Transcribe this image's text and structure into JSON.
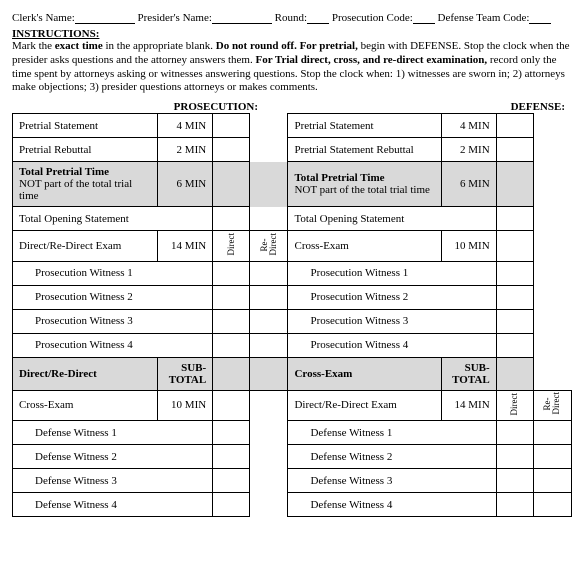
{
  "header": {
    "clerk": "Clerk's Name:",
    "presider": "Presider's Name:",
    "round": "Round:",
    "pcode": "Prosecution Code:",
    "dcode": "Defense Team Code:"
  },
  "instructions": {
    "title": "INSTRUCTIONS:",
    "t1": "Mark the ",
    "t1b": "exact time",
    "t2": " in the appropriate blank. ",
    "t2b": "Do not round off.  For pretrial,",
    "t3": " begin with DEFENSE. Stop the clock when the presider asks questions and the attorney answers them. ",
    "t3b": "For Trial direct, cross, and re-direct examination,",
    "t4": " record only the time spent by attorneys asking or witnesses answering questions.  Stop the clock when: 1) witnesses are sworn in; 2) attorneys make objections; 3) presider questions attorneys or makes comments."
  },
  "cols": {
    "pros": "PROSECUTION:",
    "def": "DEFENSE:"
  },
  "rows": {
    "pretrial_stmt": "Pretrial Statement",
    "pretrial_stmt_t": "4 MIN",
    "pretrial_reb": "Pretrial Rebuttal",
    "pretrial_reb_t": "2 MIN",
    "total_pre1": "Total Pretrial Time",
    "total_pre_t": "6 MIN",
    "total_pre2": "NOT part of the total trial time",
    "total_open": "Total Opening Statement",
    "ddr": "Direct/Re-Direct Exam",
    "ddr_t": "14 MIN",
    "cross": "Cross-Exam",
    "cross_t": "10 MIN",
    "pw1": "Prosecution Witness 1",
    "pw2": "Prosecution Witness 2",
    "pw3": "Prosecution Witness 3",
    "pw4": "Prosecution Witness 4",
    "sub_l": "Direct/Re-Direct",
    "sub_r": "Cross-Exam",
    "sub": "SUB-TOTAL",
    "dw1": "Defense Witness 1",
    "dw2": "Defense Witness 2",
    "dw3": "Defense Witness 3",
    "dw4": "Defense Witness 4",
    "v_direct": "Direct",
    "v_re": "Re-Direct"
  }
}
